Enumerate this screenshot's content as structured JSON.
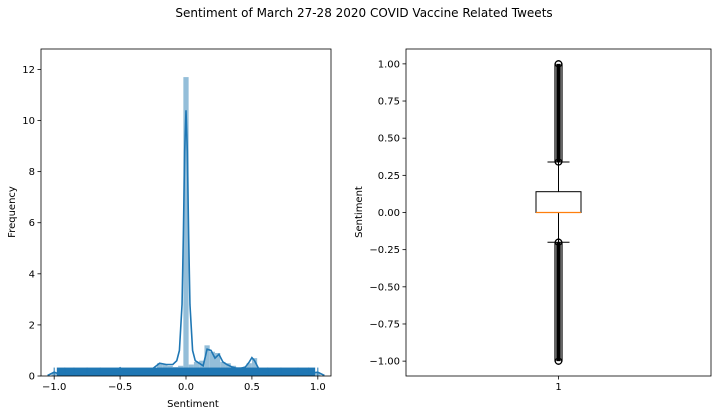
{
  "figure": {
    "suptitle": "Sentiment of March 27-28 2020 COVID Vaccine Related Tweets"
  },
  "chart_data": [
    {
      "type": "histogram",
      "style": "distplot with histogram, kde line and rug",
      "xlabel": "Sentiment",
      "ylabel": "Frequency",
      "xlim": [
        -1.1,
        1.1
      ],
      "ylim": [
        0,
        12.8
      ],
      "x_ticks": [
        -1.0,
        -0.5,
        0.0,
        0.5,
        1.0
      ],
      "x_tick_labels": [
        "−1.0",
        "−0.5",
        "0.0",
        "0.5",
        "1.0"
      ],
      "y_ticks": [
        0,
        2,
        4,
        6,
        8,
        10,
        12
      ],
      "y_tick_labels": [
        "0",
        "2",
        "4",
        "6",
        "8",
        "10",
        "12"
      ],
      "bin_width": 0.04,
      "histogram": {
        "bin_centers": [
          -1.0,
          -0.88,
          -0.8,
          -0.5,
          -0.32,
          -0.24,
          -0.2,
          -0.16,
          -0.12,
          -0.08,
          -0.04,
          0.0,
          0.04,
          0.08,
          0.12,
          0.16,
          0.2,
          0.24,
          0.28,
          0.32,
          0.36,
          0.4,
          0.44,
          0.48,
          0.52,
          0.6,
          0.8,
          1.0
        ],
        "densities": [
          0.12,
          0.08,
          0.12,
          0.3,
          0.15,
          0.3,
          0.5,
          0.45,
          0.4,
          0.35,
          0.4,
          11.7,
          0.45,
          0.55,
          0.6,
          1.2,
          0.95,
          0.9,
          0.55,
          0.5,
          0.4,
          0.35,
          0.35,
          0.5,
          0.7,
          0.25,
          0.15,
          0.12
        ]
      },
      "kde": {
        "x": [
          -1.05,
          -1.0,
          -0.95,
          -0.9,
          -0.8,
          -0.7,
          -0.6,
          -0.55,
          -0.5,
          -0.45,
          -0.4,
          -0.35,
          -0.3,
          -0.25,
          -0.2,
          -0.15,
          -0.1,
          -0.07,
          -0.05,
          -0.03,
          -0.02,
          -0.01,
          0.0,
          0.01,
          0.02,
          0.03,
          0.05,
          0.07,
          0.1,
          0.13,
          0.16,
          0.19,
          0.22,
          0.25,
          0.28,
          0.31,
          0.35,
          0.4,
          0.45,
          0.48,
          0.5,
          0.52,
          0.55,
          0.6,
          0.7,
          0.8,
          0.9,
          1.0,
          1.05
        ],
        "y": [
          0.02,
          0.15,
          0.05,
          0.05,
          0.08,
          0.06,
          0.06,
          0.1,
          0.32,
          0.1,
          0.08,
          0.1,
          0.12,
          0.3,
          0.5,
          0.45,
          0.45,
          0.6,
          1.0,
          2.8,
          5.5,
          8.8,
          10.4,
          8.8,
          5.5,
          2.8,
          1.0,
          0.6,
          0.5,
          0.4,
          1.05,
          1.0,
          0.7,
          0.85,
          0.55,
          0.45,
          0.35,
          0.28,
          0.35,
          0.55,
          0.72,
          0.6,
          0.3,
          0.12,
          0.08,
          0.08,
          0.08,
          0.15,
          0.02
        ]
      },
      "colors": {
        "bar": "#94bed9",
        "line": "#1f77b4",
        "rug": "#1f77b4"
      }
    },
    {
      "type": "boxplot",
      "ylabel": "Sentiment",
      "categories": [
        "1"
      ],
      "ylim": [
        -1.1,
        1.1
      ],
      "y_ticks": [
        -1.0,
        -0.75,
        -0.5,
        -0.25,
        0.0,
        0.25,
        0.5,
        0.75,
        1.0
      ],
      "y_tick_labels": [
        "−1.00",
        "−0.75",
        "−0.50",
        "−0.25",
        "0.00",
        "0.25",
        "0.50",
        "0.75",
        "1.00"
      ],
      "box": {
        "q1": 0.0,
        "median": 0.0,
        "q3": 0.14,
        "whisker_low": -0.2,
        "whisker_high": 0.34
      },
      "outliers_high_range": [
        0.34,
        1.0
      ],
      "outliers_low_range": [
        -1.0,
        -0.2
      ],
      "colors": {
        "median": "#ff7f0e",
        "outliers": "#000000"
      }
    }
  ]
}
